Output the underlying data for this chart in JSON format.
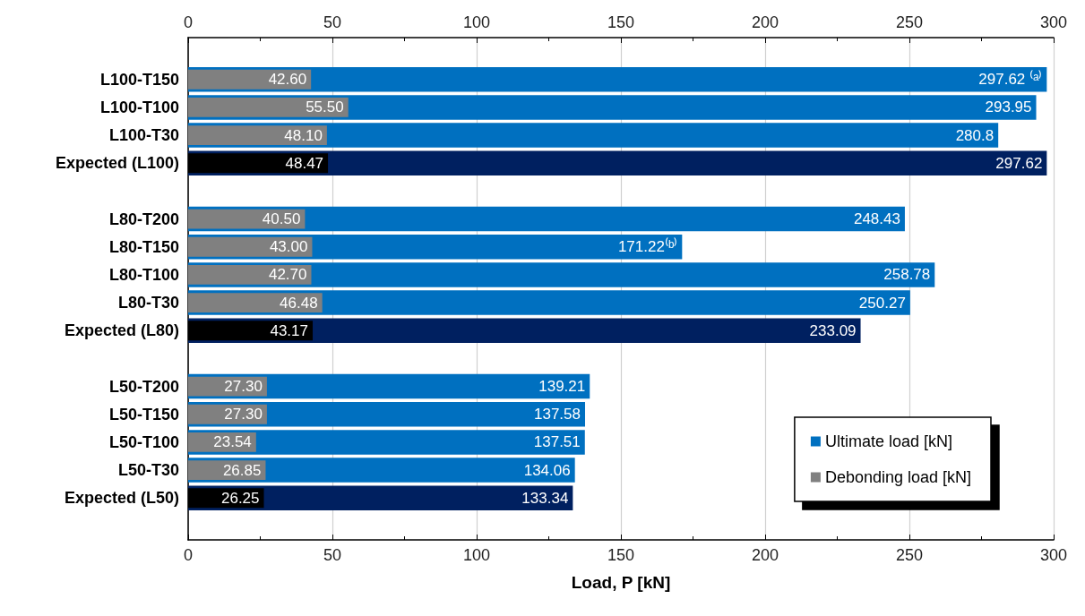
{
  "chart_data": {
    "type": "bar",
    "orientation": "horizontal",
    "stacked": false,
    "xlabel": "Load, P [kN]",
    "categories": [
      null,
      "L100-T150",
      "L100-T100",
      "L100-T30",
      "Expected (L100)",
      null,
      "L80-T200",
      "L80-T150",
      "L80-T100",
      "L80-T30",
      "Expected (L80)",
      null,
      "L50-T200",
      "L50-T150",
      "L50-T100",
      "L50-T30",
      "Expected (L50)",
      null
    ],
    "series": [
      {
        "name": "Ultimate load [kN]",
        "color": "#0070c0",
        "colors": [
          null,
          "#0070c0",
          "#0070c0",
          "#0070c0",
          "#002060",
          null,
          "#0070c0",
          "#0070c0",
          "#0070c0",
          "#0070c0",
          "#002060",
          null,
          "#0070c0",
          "#0070c0",
          "#0070c0",
          "#0070c0",
          "#002060",
          null
        ],
        "values": [
          null,
          297.62,
          293.95,
          280.8,
          297.62,
          null,
          248.43,
          171.22,
          258.78,
          250.27,
          233.09,
          null,
          139.21,
          137.58,
          137.51,
          134.06,
          133.34,
          null
        ],
        "value_labels": [
          null,
          "297.62 ⁽ᵃ⁾",
          "293.95",
          "280.8",
          "297.62",
          null,
          "248.43",
          "171.22⁽ᵇ⁾",
          "258.78",
          "250.27",
          "233.09",
          null,
          "139.21",
          "137.58",
          "137.51",
          "134.06",
          "133.34",
          null
        ]
      },
      {
        "name": "Debonding load [kN]",
        "color": "#808080",
        "colors": [
          null,
          "#808080",
          "#808080",
          "#808080",
          "#000000",
          null,
          "#808080",
          "#808080",
          "#808080",
          "#808080",
          "#000000",
          null,
          "#808080",
          "#808080",
          "#808080",
          "#808080",
          "#000000",
          null
        ],
        "values": [
          null,
          42.6,
          55.5,
          48.1,
          48.47,
          null,
          40.5,
          43.0,
          42.7,
          46.48,
          43.17,
          null,
          27.3,
          27.3,
          23.54,
          26.85,
          26.25,
          null
        ],
        "value_labels": [
          null,
          "42.60",
          "55.50",
          "48.10",
          "48.47",
          null,
          "40.50",
          "43.00",
          "42.70",
          "46.48",
          "43.17",
          null,
          "27.30",
          "27.30",
          "23.54",
          "26.85",
          "26.25",
          null
        ]
      }
    ],
    "xlim": [
      0,
      300
    ],
    "xticks": [
      0,
      50,
      100,
      150,
      200,
      250,
      300
    ],
    "x2lim": [
      0,
      300
    ],
    "x2ticks": [
      0,
      50,
      100,
      150,
      200,
      250,
      300
    ],
    "grid": "x",
    "legend": "bottom right"
  }
}
